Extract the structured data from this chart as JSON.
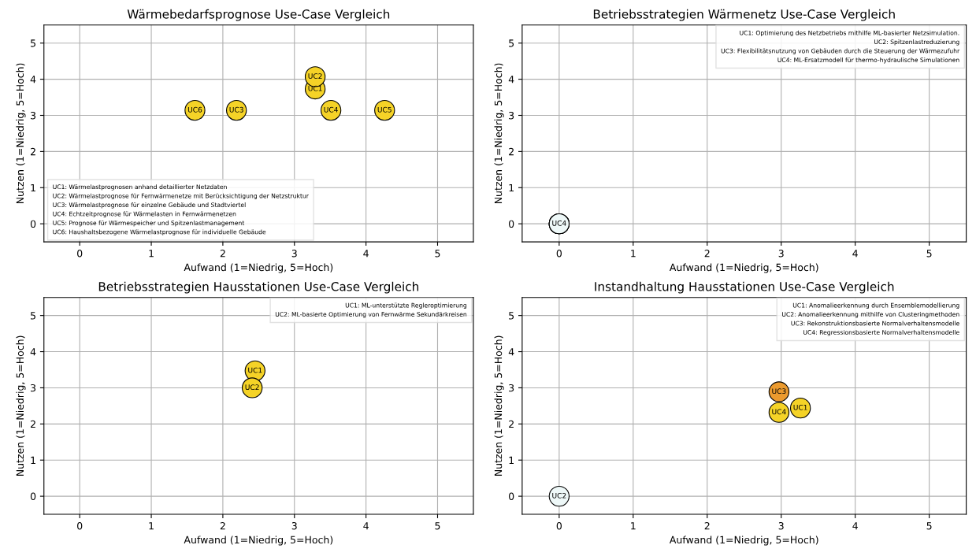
{
  "chart_data": [
    {
      "type": "scatter",
      "title": "Wärmebedarfsprognose Use-Case Vergleich",
      "xlabel": "Aufwand (1=Niedrig, 5=Hoch)",
      "ylabel": "Nutzen (1=Niedrig, 5=Hoch)",
      "xlim": [
        -0.5,
        5.5
      ],
      "ylim": [
        -0.5,
        5.5
      ],
      "xticks": [
        0,
        1,
        2,
        3,
        4,
        5
      ],
      "yticks": [
        0,
        1,
        2,
        3,
        4,
        5
      ],
      "grid": true,
      "marker": "circle",
      "series": [
        {
          "name": "UC1",
          "color": "#f5d327",
          "x": [
            3.29
          ],
          "values": [
            3.73
          ]
        },
        {
          "name": "UC2",
          "color": "#f5d327",
          "x": [
            3.29
          ],
          "values": [
            4.07
          ]
        },
        {
          "name": "UC3",
          "color": "#f5d327",
          "x": [
            2.19
          ],
          "values": [
            3.14
          ]
        },
        {
          "name": "UC4",
          "color": "#f5d327",
          "x": [
            3.51
          ],
          "values": [
            3.14
          ]
        },
        {
          "name": "UC5",
          "color": "#f5d327",
          "x": [
            4.26
          ],
          "values": [
            3.14
          ]
        },
        {
          "name": "UC6",
          "color": "#f5d327",
          "x": [
            1.61
          ],
          "values": [
            3.14
          ]
        }
      ],
      "annotations": [
        "UC1: Wärmelastprognosen anhand detaillierter Netzdaten",
        "UC2: Wärmelastprognose für Fernwärmenetze mit Berücksichtigung der Netzstruktur",
        "UC3: Wärmelastprognose für einzelne Gebäude und Stadtviertel",
        "UC4: Echtzeitprognose für Wärmelasten in Fernwärmenetzen",
        "UC5: Prognose für Wärmespeicher und Spitzenlastmanagement",
        "UC6: Haushaltsbezogene Wärmelastprognose für individuelle Gebäude"
      ]
    },
    {
      "type": "scatter",
      "title": "Betriebsstrategien Wärmenetz Use-Case Vergleich",
      "xlabel": "Aufwand (1=Niedrig, 5=Hoch)",
      "ylabel": "Nutzen (1=Niedrig, 5=Hoch)",
      "xlim": [
        -0.5,
        5.5
      ],
      "ylim": [
        -0.5,
        5.5
      ],
      "xticks": [
        0,
        1,
        2,
        3,
        4,
        5
      ],
      "yticks": [
        0,
        1,
        2,
        3,
        4,
        5
      ],
      "grid": true,
      "marker": "circle",
      "series": [
        {
          "color": "#eef8f8",
          "x": [
            0
          ],
          "values": [
            0
          ]
        },
        {
          "color": "#eef8f8",
          "x": [
            0
          ],
          "values": [
            0
          ]
        },
        {
          "color": "#eef8f8",
          "x": [
            0
          ],
          "values": [
            0
          ]
        },
        {
          "name": "UC4",
          "color": "#eef8f8",
          "x": [
            0
          ],
          "values": [
            0
          ]
        }
      ],
      "annotations": [
        "UC1: Optimierung des Netzbetriebs mithilfe ML-basierter Netzsimulation.",
        "UC2: Spitzenlastreduzierung",
        "UC3: Flexibilitätsnutzung von Gebäuden durch die Steuerung der Wärmezufuhr",
        "UC4: ML-Ersatzmodell für thermo-hydraulische Simulationen"
      ]
    },
    {
      "type": "scatter",
      "title": "Betriebsstrategien Hausstationen Use-Case Vergleich",
      "xlabel": "Aufwand (1=Niedrig, 5=Hoch)",
      "ylabel": "Nutzen (1=Niedrig, 5=Hoch)",
      "xlim": [
        -0.5,
        5.5
      ],
      "ylim": [
        -0.5,
        5.5
      ],
      "xticks": [
        0,
        1,
        2,
        3,
        4,
        5
      ],
      "yticks": [
        0,
        1,
        2,
        3,
        4,
        5
      ],
      "grid": true,
      "marker": "circle",
      "series": [
        {
          "name": "UC1",
          "color": "#f5d327",
          "x": [
            2.45
          ],
          "values": [
            3.47
          ]
        },
        {
          "name": "UC2",
          "color": "#f5d327",
          "x": [
            2.41
          ],
          "values": [
            3.0
          ]
        }
      ],
      "annotations": [
        "UC1: ML-unterstützte Regleroptimierung",
        "UC2: ML-basierte Optimierung von Fernwärme Sekundärkreisen"
      ]
    },
    {
      "type": "scatter",
      "title": "Instandhaltung Hausstationen Use-Case Vergleich",
      "xlabel": "Aufwand (1=Niedrig, 5=Hoch)",
      "ylabel": "Nutzen (1=Niedrig, 5=Hoch)",
      "xlim": [
        -0.5,
        5.5
      ],
      "ylim": [
        -0.5,
        5.5
      ],
      "xticks": [
        0,
        1,
        2,
        3,
        4,
        5
      ],
      "yticks": [
        0,
        1,
        2,
        3,
        4,
        5
      ],
      "grid": true,
      "marker": "circle",
      "series": [
        {
          "name": "UC1",
          "color": "#f5d327",
          "x": [
            3.26
          ],
          "values": [
            2.44
          ]
        },
        {
          "name": "UC2",
          "color": "#eef8f8",
          "x": [
            0
          ],
          "values": [
            0
          ]
        },
        {
          "name": "UC3",
          "color": "#eb9a2e",
          "x": [
            2.97
          ],
          "values": [
            2.89
          ]
        },
        {
          "name": "UC4",
          "color": "#f5d327",
          "x": [
            2.97
          ],
          "values": [
            2.32
          ]
        }
      ],
      "annotations": [
        "UC1: Anomalieerkennung durch Ensemblemodellierung",
        "UC2: Anomalieerkennung mithilfe von Clusteringmethoden",
        "UC3: Rekonstruktionsbasierte Normalverhaltensmodelle",
        "UC4: Regressionsbasierte Normalverhaltensmodelle"
      ]
    }
  ]
}
